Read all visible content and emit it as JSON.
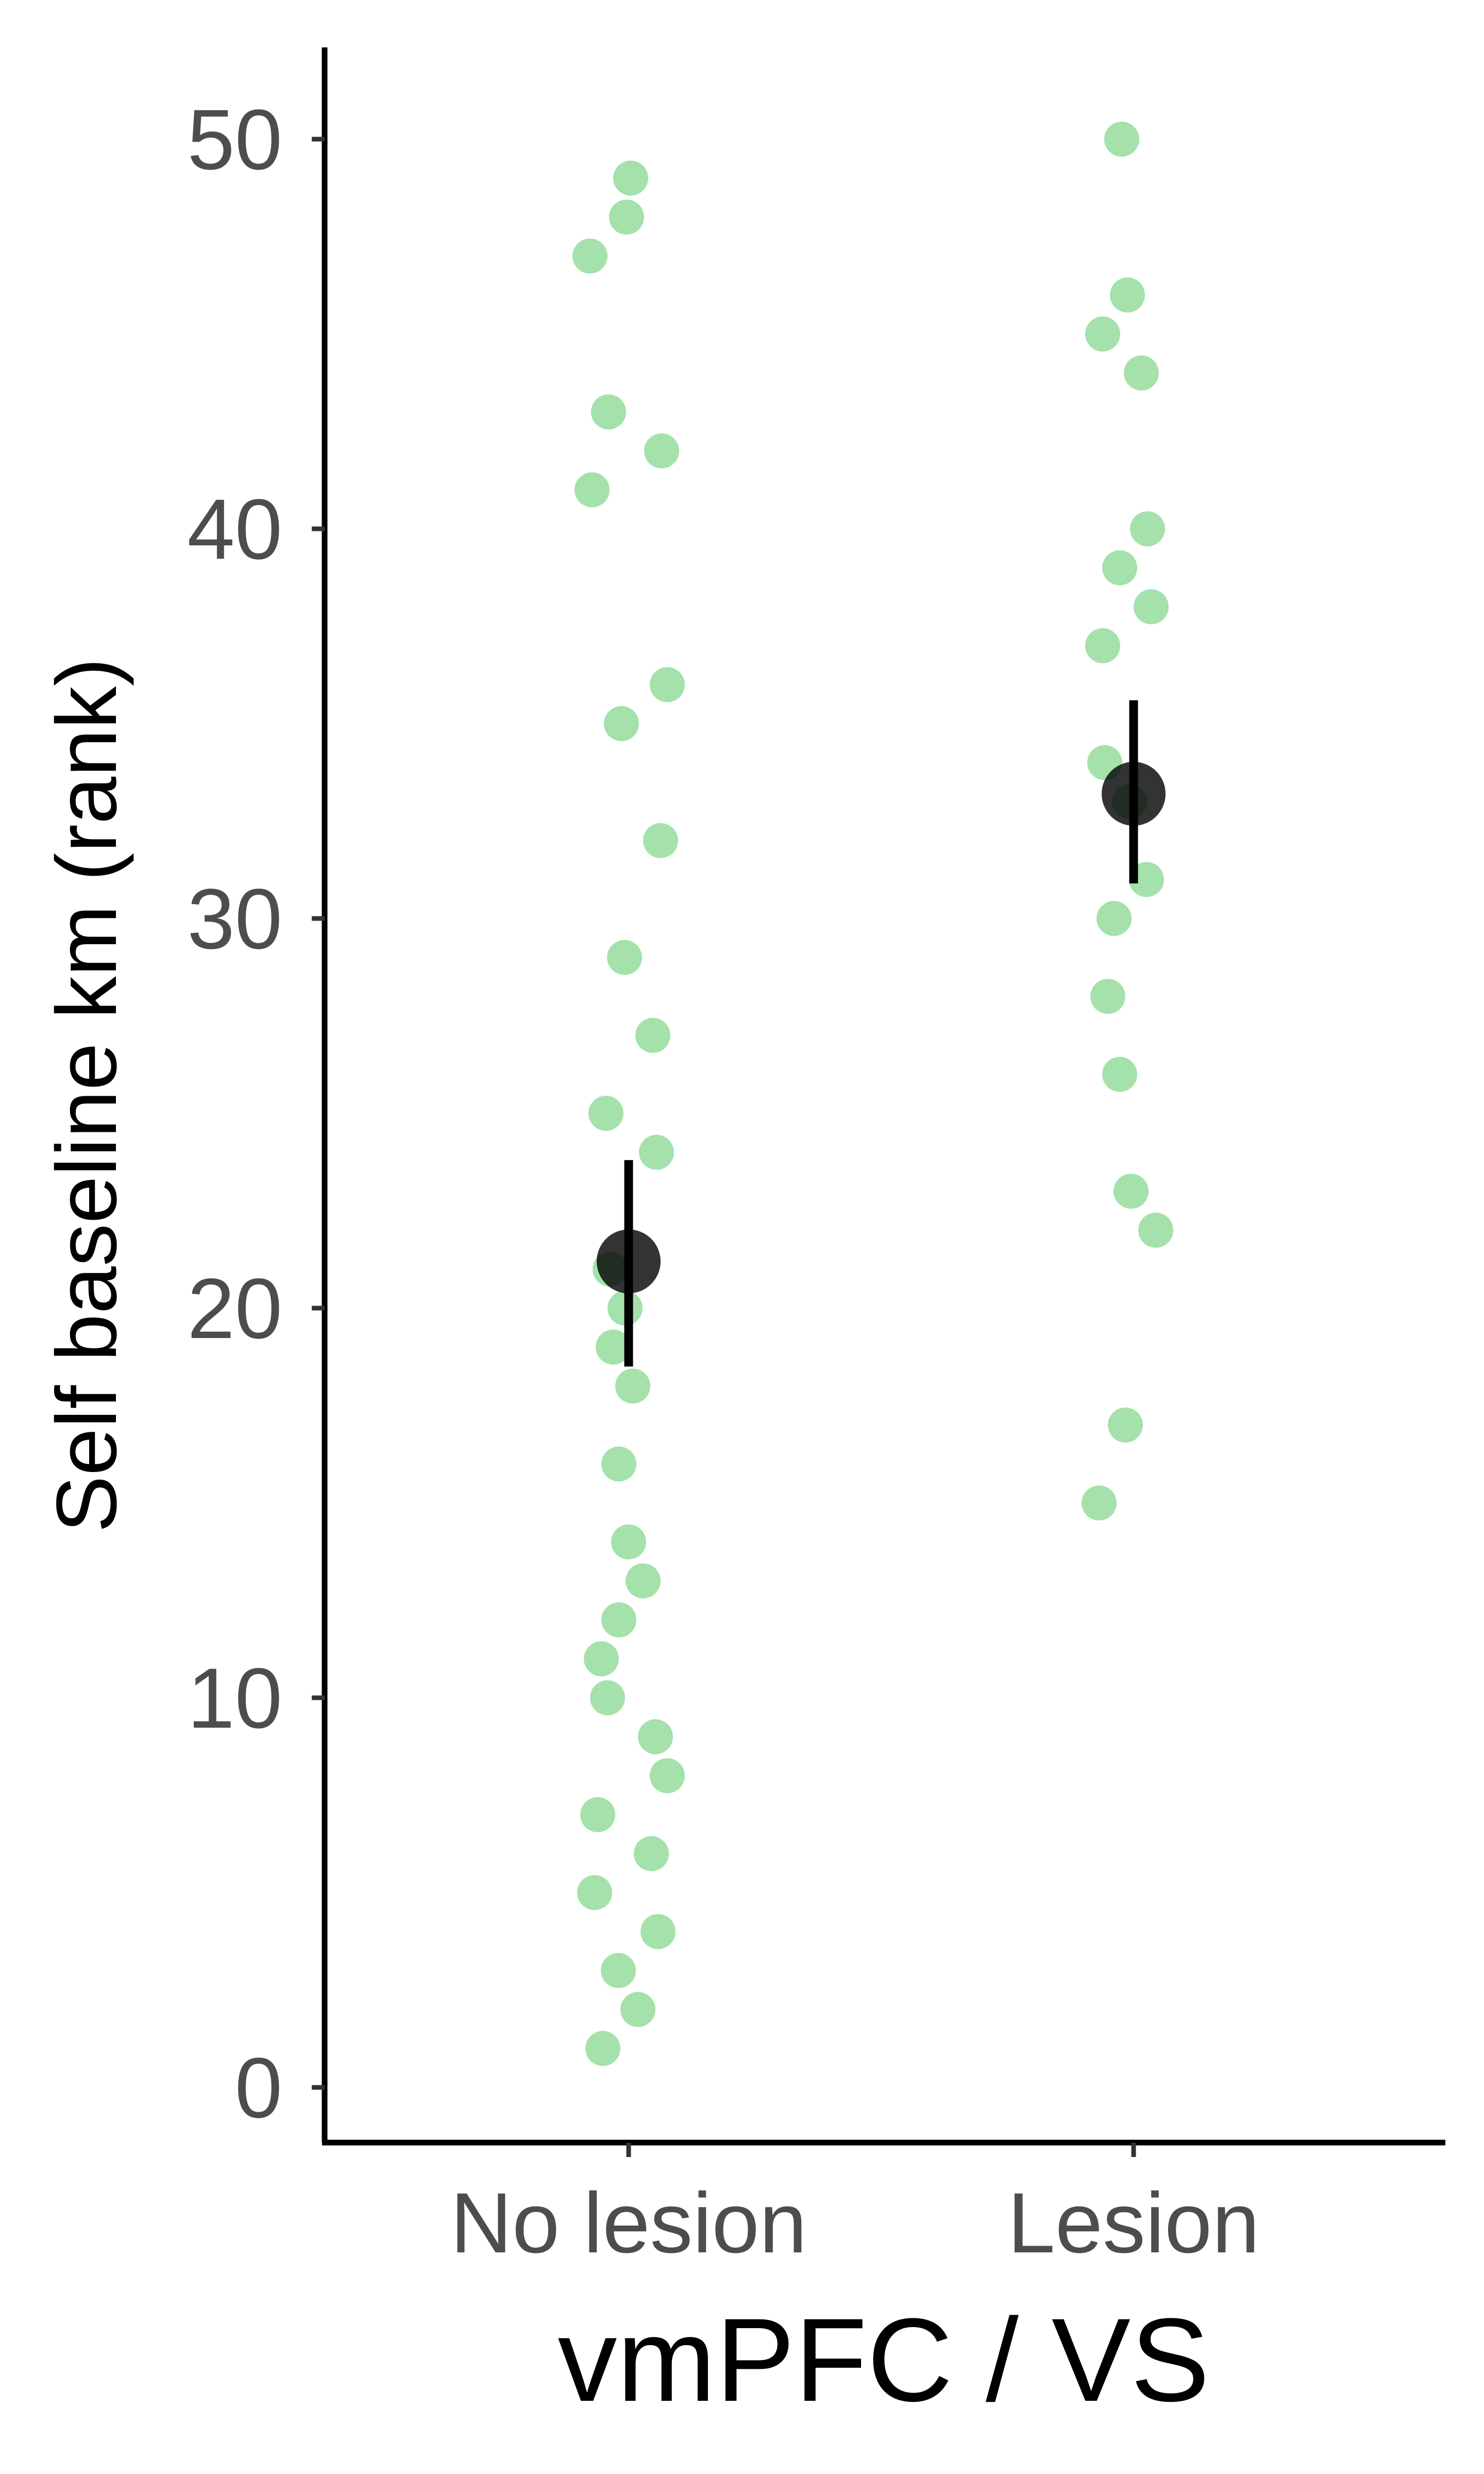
{
  "chart_data": {
    "type": "scatter",
    "title": "",
    "xlabel": "vmPFC / VS",
    "ylabel": "Self baseline km (rank)",
    "categories": [
      "No lesion",
      "Lesion"
    ],
    "ylim": [
      -1,
      52.3
    ],
    "yticks": [
      0,
      10,
      20,
      30,
      40,
      50
    ],
    "grid": false,
    "legend": "none",
    "points": [
      {
        "group": "No lesion",
        "jitter": -0.075,
        "y": 47
      },
      {
        "group": "No lesion",
        "jitter": 0.004,
        "y": 49
      },
      {
        "group": "No lesion",
        "jitter": -0.004,
        "y": 48
      },
      {
        "group": "No lesion",
        "jitter": -0.039,
        "y": 43
      },
      {
        "group": "No lesion",
        "jitter": 0.064,
        "y": 42
      },
      {
        "group": "No lesion",
        "jitter": -0.071,
        "y": 41
      },
      {
        "group": "No lesion",
        "jitter": 0.075,
        "y": 36
      },
      {
        "group": "No lesion",
        "jitter": -0.014,
        "y": 35
      },
      {
        "group": "No lesion",
        "jitter": 0.062,
        "y": 32
      },
      {
        "group": "No lesion",
        "jitter": -0.008,
        "y": 29
      },
      {
        "group": "No lesion",
        "jitter": 0.047,
        "y": 27
      },
      {
        "group": "No lesion",
        "jitter": -0.044,
        "y": 25
      },
      {
        "group": "No lesion",
        "jitter": 0.054,
        "y": 24
      },
      {
        "group": "No lesion",
        "jitter": -0.036,
        "y": 21
      },
      {
        "group": "No lesion",
        "jitter": -0.007,
        "y": 20
      },
      {
        "group": "No lesion",
        "jitter": -0.03,
        "y": 19
      },
      {
        "group": "No lesion",
        "jitter": 0.008,
        "y": 18
      },
      {
        "group": "No lesion",
        "jitter": -0.019,
        "y": 16
      },
      {
        "group": "No lesion",
        "jitter": 0.0,
        "y": 14
      },
      {
        "group": "No lesion",
        "jitter": 0.028,
        "y": 13
      },
      {
        "group": "No lesion",
        "jitter": -0.019,
        "y": 12
      },
      {
        "group": "No lesion",
        "jitter": -0.053,
        "y": 11
      },
      {
        "group": "No lesion",
        "jitter": -0.041,
        "y": 10
      },
      {
        "group": "No lesion",
        "jitter": 0.052,
        "y": 9
      },
      {
        "group": "No lesion",
        "jitter": 0.075,
        "y": 8
      },
      {
        "group": "No lesion",
        "jitter": -0.06,
        "y": 7
      },
      {
        "group": "No lesion",
        "jitter": 0.044,
        "y": 6
      },
      {
        "group": "No lesion",
        "jitter": -0.066,
        "y": 5
      },
      {
        "group": "No lesion",
        "jitter": 0.057,
        "y": 4
      },
      {
        "group": "No lesion",
        "jitter": -0.02,
        "y": 3
      },
      {
        "group": "No lesion",
        "jitter": 0.018,
        "y": 2
      },
      {
        "group": "No lesion",
        "jitter": -0.05,
        "y": 1
      },
      {
        "group": "Lesion",
        "jitter": -0.023,
        "y": 50
      },
      {
        "group": "Lesion",
        "jitter": -0.012,
        "y": 46
      },
      {
        "group": "Lesion",
        "jitter": -0.06,
        "y": 45
      },
      {
        "group": "Lesion",
        "jitter": 0.015,
        "y": 44
      },
      {
        "group": "Lesion",
        "jitter": 0.027,
        "y": 40
      },
      {
        "group": "Lesion",
        "jitter": -0.027,
        "y": 39
      },
      {
        "group": "Lesion",
        "jitter": 0.034,
        "y": 38
      },
      {
        "group": "Lesion",
        "jitter": -0.06,
        "y": 37
      },
      {
        "group": "Lesion",
        "jitter": -0.056,
        "y": 34
      },
      {
        "group": "Lesion",
        "jitter": 0.025,
        "y": 31
      },
      {
        "group": "Lesion",
        "jitter": -0.038,
        "y": 30
      },
      {
        "group": "Lesion",
        "jitter": -0.05,
        "y": 28
      },
      {
        "group": "Lesion",
        "jitter": -0.027,
        "y": 26
      },
      {
        "group": "Lesion",
        "jitter": -0.005,
        "y": 23
      },
      {
        "group": "Lesion",
        "jitter": 0.043,
        "y": 22
      },
      {
        "group": "Lesion",
        "jitter": -0.016,
        "y": 17
      },
      {
        "group": "Lesion",
        "jitter": -0.067,
        "y": 15
      },
      {
        "group": "Lesion",
        "jitter": -0.008,
        "y": 33
      }
    ],
    "summary": [
      {
        "group": "No lesion",
        "mean": 21.2,
        "lower": 18.5,
        "upper": 23.8
      },
      {
        "group": "Lesion",
        "mean": 33.2,
        "lower": 30.9,
        "upper": 35.6
      }
    ],
    "colors": {
      "points": "#82d68a",
      "summary": "#000000",
      "axis": "#000000",
      "tick_labels": "#4d4d4d"
    }
  }
}
